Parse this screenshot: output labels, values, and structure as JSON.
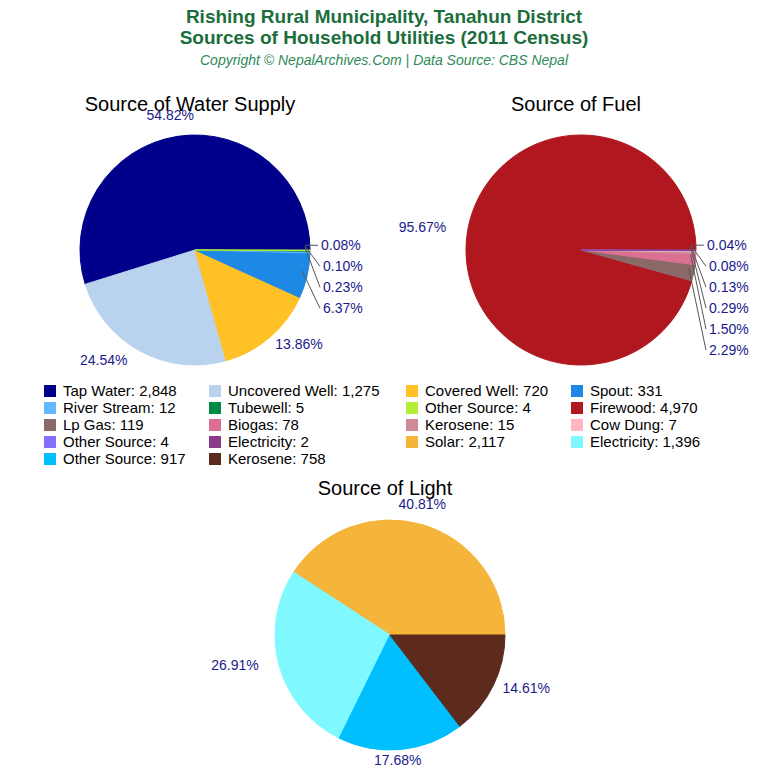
{
  "title": [
    "Rishing Rural Municipality, Tanahun District",
    "Sources of Household Utilities (2011 Census)"
  ],
  "subtitle": "Copyright © NepalArchives.Com | Data Source: CBS Nepal",
  "chart_data": [
    {
      "type": "pie",
      "title": "Source of Water Supply",
      "categories": [
        "Tap Water",
        "Uncovered Well",
        "Covered Well",
        "Spout",
        "River Stream",
        "Tubewell",
        "Other Source"
      ],
      "values": [
        2848,
        1275,
        720,
        331,
        12,
        5,
        4
      ],
      "value_labels": [
        "2,848",
        "1,275",
        "720",
        "331",
        "12",
        "5",
        "4"
      ],
      "colors": [
        "#00008b",
        "#b9d3ee",
        "#ffc125",
        "#1e88e5",
        "#63b8ff",
        "#008b45",
        "#b3ee3a"
      ],
      "percentages": [
        54.82,
        24.54,
        13.86,
        6.37,
        0.23,
        0.1,
        0.08
      ],
      "percentage_labels": [
        "54.82%",
        "24.54%",
        "13.86%",
        "6.37%",
        "0.23%",
        "0.10%",
        "0.08%"
      ],
      "legend": "bottom"
    },
    {
      "type": "pie",
      "title": "Source of Fuel",
      "categories": [
        "Firewood",
        "Lp Gas",
        "Biogas",
        "Kerosene",
        "Cow Dung",
        "Other Source",
        "Electricity"
      ],
      "values": [
        4970,
        119,
        78,
        15,
        7,
        4,
        2
      ],
      "value_labels": [
        "4,970",
        "119",
        "78",
        "15",
        "7",
        "4",
        "2"
      ],
      "colors": [
        "#b0171f",
        "#8b6969",
        "#db7093",
        "#cd8c95",
        "#ffb6c1",
        "#8470ff",
        "#8b3a8b"
      ],
      "percentages": [
        95.67,
        2.29,
        1.5,
        0.29,
        0.13,
        0.08,
        0.04
      ],
      "percentage_labels": [
        "95.67%",
        "2.29%",
        "1.50%",
        "0.29%",
        "0.13%",
        "0.08%",
        "0.04%"
      ],
      "legend": "bottom"
    },
    {
      "type": "pie",
      "title": "Source of Light",
      "categories": [
        "Solar",
        "Electricity",
        "Other Source",
        "Kerosene"
      ],
      "values": [
        2117,
        1396,
        917,
        758
      ],
      "value_labels": [
        "2,117",
        "1,396",
        "917",
        "758"
      ],
      "colors": [
        "#f5b53b",
        "#7ff9ff",
        "#00bfff",
        "#5c2b1e"
      ],
      "percentages": [
        40.81,
        26.91,
        17.68,
        14.61
      ],
      "percentage_labels": [
        "40.81%",
        "26.91%",
        "17.68%",
        "14.61%"
      ],
      "legend": "bottom"
    }
  ]
}
